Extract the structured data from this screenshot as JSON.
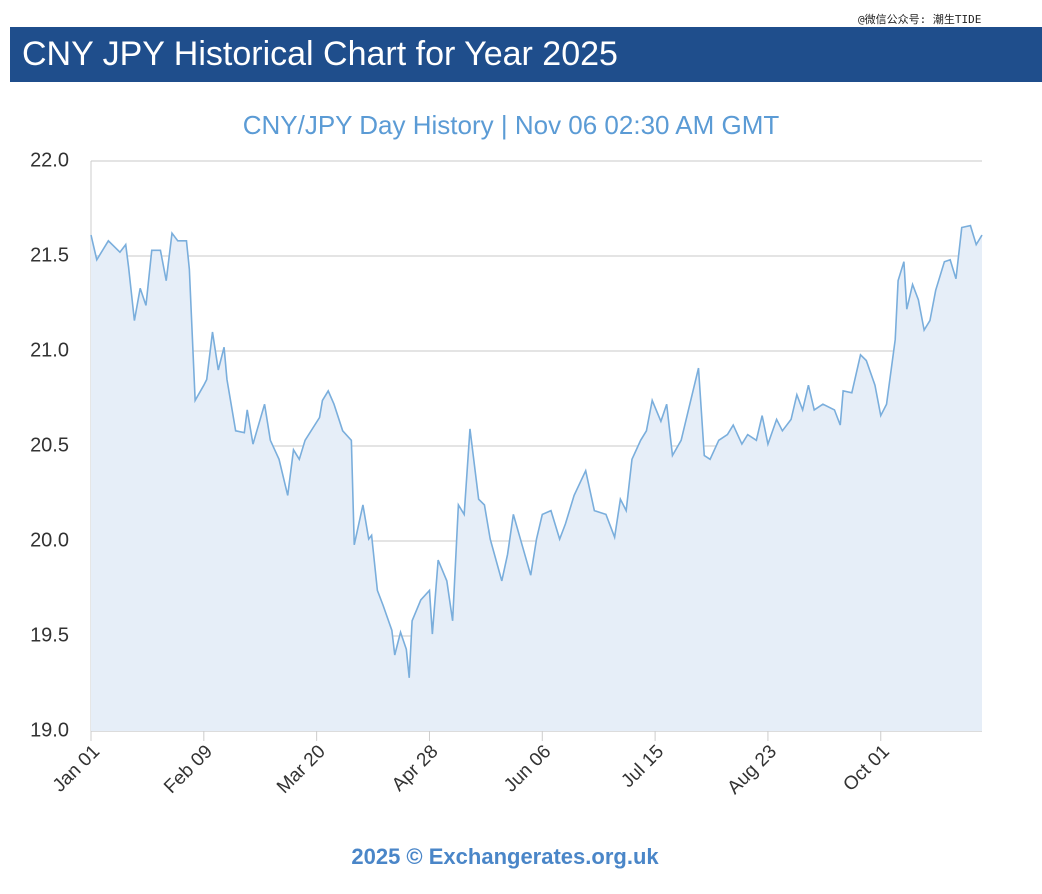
{
  "watermark": "@微信公众号: 潮生TIDE",
  "header": {
    "title": "CNY JPY Historical Chart for Year 2025"
  },
  "chart_data": {
    "type": "area",
    "title": "CNY/JPY  Day History | Nov 06 02:30 AM GMT",
    "footer": "2025 © Exchangerates.org.uk",
    "color": "#7aaedc",
    "fill": "#e6eef8",
    "grid": true,
    "xlim": [
      0,
      308
    ],
    "ylim": [
      19.0,
      22.0
    ],
    "xticks": [
      {
        "value": 0,
        "label": "Jan 01"
      },
      {
        "value": 39,
        "label": "Feb 09"
      },
      {
        "value": 78,
        "label": "Mar 20"
      },
      {
        "value": 117,
        "label": "Apr 28"
      },
      {
        "value": 156,
        "label": "Jun 06"
      },
      {
        "value": 195,
        "label": "Jul 15"
      },
      {
        "value": 234,
        "label": "Aug 23"
      },
      {
        "value": 273,
        "label": "Oct 01"
      }
    ],
    "yticks": [
      {
        "value": 19.0,
        "label": "19.0"
      },
      19.5,
      {
        "value": 20.0,
        "label": "20.0"
      },
      20.5,
      {
        "value": 21.0,
        "label": "21.0"
      },
      21.5,
      {
        "value": 22.0,
        "label": "22.0"
      }
    ],
    "x": [
      0,
      2,
      6,
      10,
      12,
      13,
      15,
      17,
      19,
      21,
      24,
      26,
      28,
      30,
      33,
      34,
      36,
      39,
      40,
      42,
      44,
      46,
      47,
      50,
      53,
      54,
      56,
      60,
      62,
      65,
      68,
      70,
      72,
      74,
      79,
      80,
      82,
      84,
      87,
      90,
      91,
      94,
      96,
      97,
      99,
      101,
      104,
      105,
      107,
      109,
      110,
      111,
      114,
      117,
      118,
      120,
      123,
      125,
      127,
      129,
      131,
      134,
      136,
      138,
      142,
      144,
      146,
      149,
      152,
      154,
      156,
      159,
      162,
      164,
      167,
      171,
      174,
      178,
      181,
      183,
      185,
      187,
      190,
      192,
      194,
      197,
      199,
      201,
      204,
      207,
      210,
      212,
      214,
      217,
      220,
      222,
      225,
      227,
      230,
      232,
      234,
      237,
      239,
      242,
      244,
      246,
      248,
      250,
      253,
      257,
      259,
      260,
      263,
      266,
      268,
      271,
      273,
      275,
      278,
      279,
      281,
      282,
      284,
      286,
      288,
      290,
      292,
      295,
      297,
      299,
      301,
      304,
      306,
      308
    ],
    "values": [
      21.61,
      21.48,
      21.58,
      21.52,
      21.56,
      21.44,
      21.16,
      21.33,
      21.24,
      21.53,
      21.53,
      21.37,
      21.62,
      21.58,
      21.58,
      21.43,
      20.74,
      20.82,
      20.85,
      21.1,
      20.9,
      21.02,
      20.85,
      20.58,
      20.57,
      20.69,
      20.51,
      20.72,
      20.53,
      20.43,
      20.24,
      20.48,
      20.43,
      20.53,
      20.65,
      20.74,
      20.79,
      20.72,
      20.58,
      20.53,
      19.98,
      20.19,
      20.01,
      20.03,
      19.74,
      19.66,
      19.53,
      19.4,
      19.52,
      19.43,
      19.28,
      19.58,
      19.69,
      19.74,
      19.51,
      19.9,
      19.79,
      19.58,
      20.19,
      20.14,
      20.59,
      20.22,
      20.19,
      20.01,
      19.79,
      19.93,
      20.14,
      19.98,
      19.82,
      20.01,
      20.14,
      20.16,
      20.01,
      20.09,
      20.24,
      20.37,
      20.16,
      20.14,
      20.02,
      20.22,
      20.16,
      20.43,
      20.53,
      20.58,
      20.74,
      20.63,
      20.72,
      20.45,
      20.53,
      20.72,
      20.91,
      20.45,
      20.43,
      20.53,
      20.56,
      20.61,
      20.51,
      20.56,
      20.53,
      20.66,
      20.51,
      20.64,
      20.58,
      20.64,
      20.77,
      20.69,
      20.82,
      20.69,
      20.72,
      20.69,
      20.61,
      20.79,
      20.78,
      20.98,
      20.95,
      20.82,
      20.66,
      20.72,
      21.06,
      21.37,
      21.47,
      21.22,
      21.35,
      21.27,
      21.11,
      21.16,
      21.32,
      21.47,
      21.48,
      21.38,
      21.65,
      21.66,
      21.56,
      21.61
    ]
  }
}
